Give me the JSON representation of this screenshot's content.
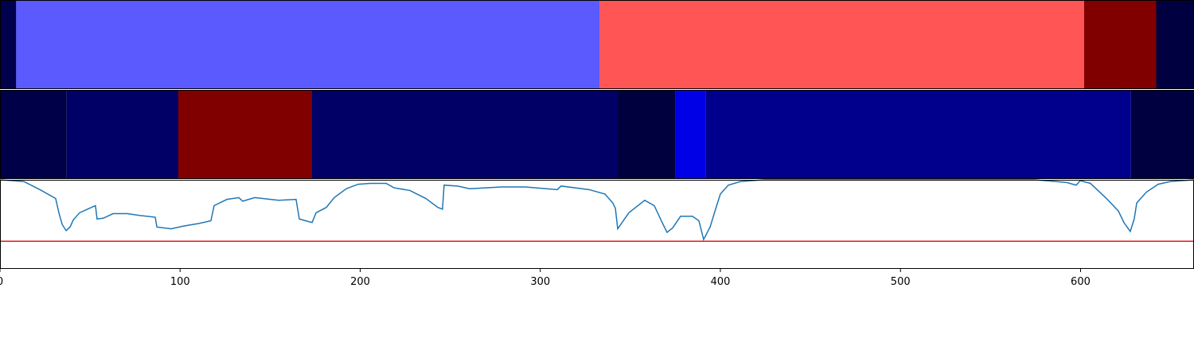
{
  "chart_data": [
    {
      "type": "segments",
      "xlim": [
        0,
        663
      ],
      "segments": [
        {
          "start": 0,
          "end": 9,
          "color": "#00004d"
        },
        {
          "start": 9,
          "end": 333,
          "color": "#5a5aff"
        },
        {
          "start": 333,
          "end": 602,
          "color": "#ff5555"
        },
        {
          "start": 602,
          "end": 642,
          "color": "#800000"
        },
        {
          "start": 642,
          "end": 663,
          "color": "#000040"
        }
      ]
    },
    {
      "type": "segments",
      "xlim": [
        0,
        663
      ],
      "segments": [
        {
          "start": 0,
          "end": 37,
          "color": "#000048"
        },
        {
          "start": 37,
          "end": 99,
          "color": "#000066"
        },
        {
          "start": 99,
          "end": 173,
          "color": "#800000"
        },
        {
          "start": 173,
          "end": 343,
          "color": "#000066"
        },
        {
          "start": 343,
          "end": 375,
          "color": "#00003f"
        },
        {
          "start": 375,
          "end": 392,
          "color": "#0000e6"
        },
        {
          "start": 392,
          "end": 628,
          "color": "#00008c"
        },
        {
          "start": 628,
          "end": 663,
          "color": "#000040"
        }
      ]
    },
    {
      "type": "line",
      "xlim": [
        0,
        663
      ],
      "ylim": [
        0,
        1
      ],
      "xticks": [
        0,
        100,
        200,
        300,
        400,
        500,
        600
      ],
      "hline": {
        "value": 0.31,
        "color": "#e8141c"
      },
      "series": [
        {
          "color": "#1f77b4",
          "x": [
            0,
            13.3,
            22.1,
            30.9,
            32.7,
            34.5,
            36.7,
            38.9,
            40.7,
            44.2,
            48.6,
            53.0,
            53.9,
            57.5,
            62.8,
            70.7,
            77.3,
            86.2,
            87.1,
            95.0,
            101.7,
            110.5,
            117.1,
            118.9,
            126.0,
            132.6,
            134.8,
            141.4,
            145.9,
            150.3,
            154.7,
            164.4,
            166.2,
            173.3,
            175.5,
            181.2,
            185.6,
            192.3,
            198.9,
            205.5,
            214.4,
            218.8,
            227.6,
            236.5,
            243.1,
            245.7,
            246.6,
            254.1,
            260.8,
            269.6,
            278.5,
            291.7,
            309.4,
            311.6,
            327.1,
            335.9,
            340.3,
            341.7,
            343.0,
            349.2,
            358.0,
            363.3,
            367.7,
            370.4,
            373.5,
            377.9,
            384.5,
            388.1,
            390.7,
            394.3,
            397.8,
            400.0,
            404.4,
            411.0,
            424.3,
            574.6,
            592.3,
            597.6,
            599.8,
            605.5,
            614.4,
            621.0,
            624.1,
            627.6,
            629.8,
            631.2,
            636.5,
            643.1,
            649.7,
            663.0
          ],
          "values": [
            1.0,
            0.98,
            0.89,
            0.79,
            0.63,
            0.5,
            0.43,
            0.47,
            0.55,
            0.63,
            0.67,
            0.71,
            0.56,
            0.57,
            0.62,
            0.62,
            0.6,
            0.58,
            0.47,
            0.45,
            0.48,
            0.51,
            0.54,
            0.71,
            0.78,
            0.8,
            0.76,
            0.8,
            0.79,
            0.78,
            0.77,
            0.78,
            0.56,
            0.52,
            0.63,
            0.69,
            0.8,
            0.9,
            0.95,
            0.96,
            0.96,
            0.91,
            0.88,
            0.79,
            0.69,
            0.67,
            0.94,
            0.93,
            0.9,
            0.91,
            0.92,
            0.92,
            0.89,
            0.93,
            0.89,
            0.84,
            0.74,
            0.68,
            0.45,
            0.63,
            0.77,
            0.71,
            0.52,
            0.41,
            0.46,
            0.59,
            0.59,
            0.54,
            0.33,
            0.47,
            0.7,
            0.84,
            0.94,
            0.98,
            1.0,
            1.0,
            0.97,
            0.94,
            0.99,
            0.96,
            0.79,
            0.65,
            0.52,
            0.42,
            0.56,
            0.74,
            0.86,
            0.95,
            0.98,
            1.0
          ]
        }
      ]
    }
  ]
}
